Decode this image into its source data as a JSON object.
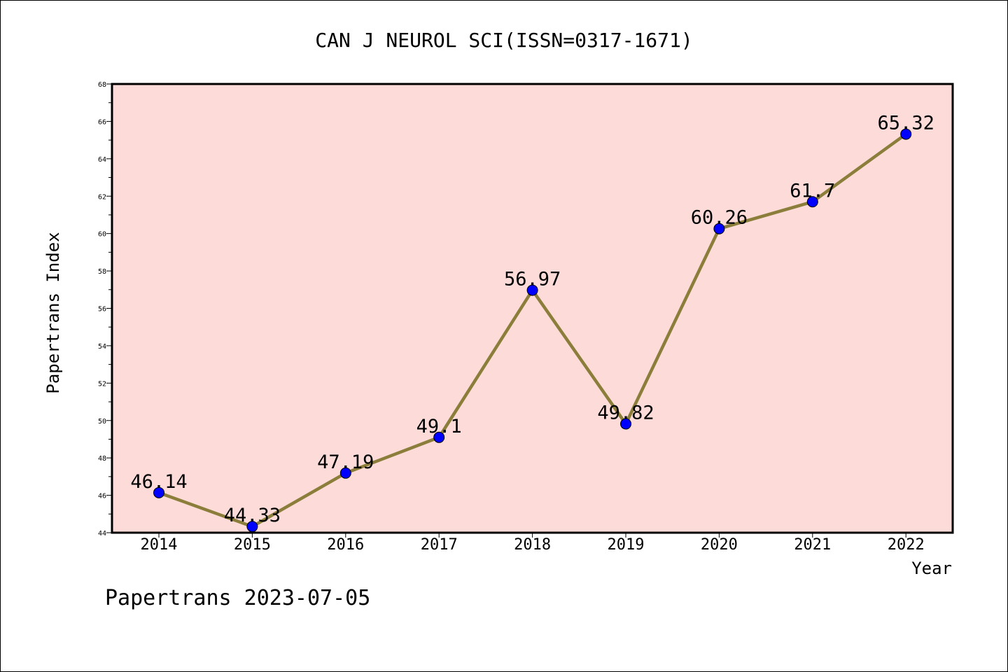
{
  "chart_data": {
    "type": "line",
    "title": "CAN J NEUROL SCI(ISSN=0317-1671)",
    "xlabel": "Year",
    "ylabel": "Papertrans Index",
    "categories": [
      "2014",
      "2015",
      "2016",
      "2017",
      "2018",
      "2019",
      "2020",
      "2021",
      "2022"
    ],
    "series": [
      {
        "values": [
          46.14,
          44.33,
          47.19,
          49.1,
          56.97,
          49.82,
          60.26,
          61.7,
          65.32
        ],
        "labels": [
          "46.14",
          "44.33",
          "47.19",
          "49.1",
          "56.97",
          "49.82",
          "60.26",
          "61.7",
          "65.32"
        ],
        "line_color": "#8B7D3A",
        "marker_color": "#0000FF"
      }
    ],
    "ylim": [
      44,
      68
    ],
    "yticks": [
      "44",
      "46",
      "48",
      "50",
      "52",
      "54",
      "56",
      "58",
      "60",
      "62",
      "64",
      "66",
      "68"
    ],
    "plot_background": "#FDDBD8",
    "grid": false,
    "legend": "none"
  },
  "footer": {
    "credit": "Papertrans 2023-07-05"
  }
}
